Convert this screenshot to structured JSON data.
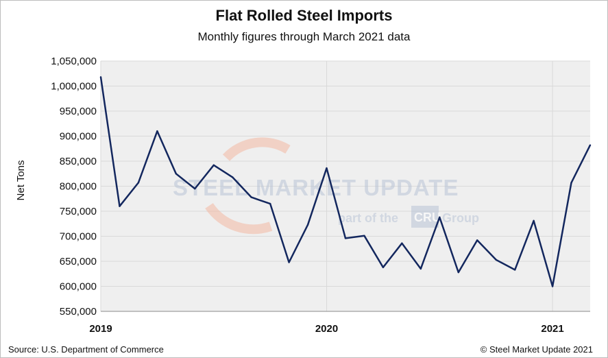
{
  "chart_data": {
    "type": "line",
    "title": "Flat Rolled Steel Imports",
    "subtitle": "Monthly figures through March 2021 data",
    "ylabel": "Net Tons",
    "xlabel": "",
    "ylim": [
      550000,
      1050000
    ],
    "yticks": [
      "550,000",
      "600,000",
      "650,000",
      "700,000",
      "750,000",
      "800,000",
      "850,000",
      "900,000",
      "950,000",
      "1,000,000",
      "1,050,000"
    ],
    "ytick_values": [
      550000,
      600000,
      650000,
      700000,
      750000,
      800000,
      850000,
      900000,
      950000,
      1000000,
      1050000
    ],
    "xticks": [
      "2019",
      "2020",
      "2021"
    ],
    "xtick_month_index": [
      0,
      12,
      24
    ],
    "grid": true,
    "series": [
      {
        "name": "Flat Rolled Steel Imports",
        "color": "#13275e",
        "x": [
          "Jan 2019",
          "Feb 2019",
          "Mar 2019",
          "Apr 2019",
          "May 2019",
          "Jun 2019",
          "Jul 2019",
          "Aug 2019",
          "Sep 2019",
          "Oct 2019",
          "Nov 2019",
          "Dec 2019",
          "Jan 2020",
          "Feb 2020",
          "Mar 2020",
          "Apr 2020",
          "May 2020",
          "Jun 2020",
          "Jul 2020",
          "Aug 2020",
          "Sep 2020",
          "Oct 2020",
          "Nov 2020",
          "Dec 2020",
          "Jan 2021",
          "Feb 2021",
          "Mar 2021"
        ],
        "values": [
          1018000,
          760000,
          807000,
          910000,
          825000,
          795000,
          842000,
          818000,
          778000,
          765000,
          648000,
          723000,
          836000,
          696000,
          701000,
          638000,
          686000,
          635000,
          738000,
          628000,
          692000,
          653000,
          633000,
          731000,
          600000,
          807000,
          882000
        ]
      }
    ]
  },
  "watermark": {
    "brand_line": "STEEL MARKET UPDATE",
    "sub_before": "part of the",
    "sub_badge": "CRU",
    "sub_after": "Group"
  },
  "footer": {
    "source": "Source: U.S. Department of Commerce",
    "copyright": "© Steel Market Update 2021"
  },
  "colors": {
    "line": "#13275e",
    "plot_bg": "#efefef",
    "grid": "#d9d9d9",
    "watermark": "#b9c4d6",
    "watermark_arc": "#f3b9a4"
  }
}
